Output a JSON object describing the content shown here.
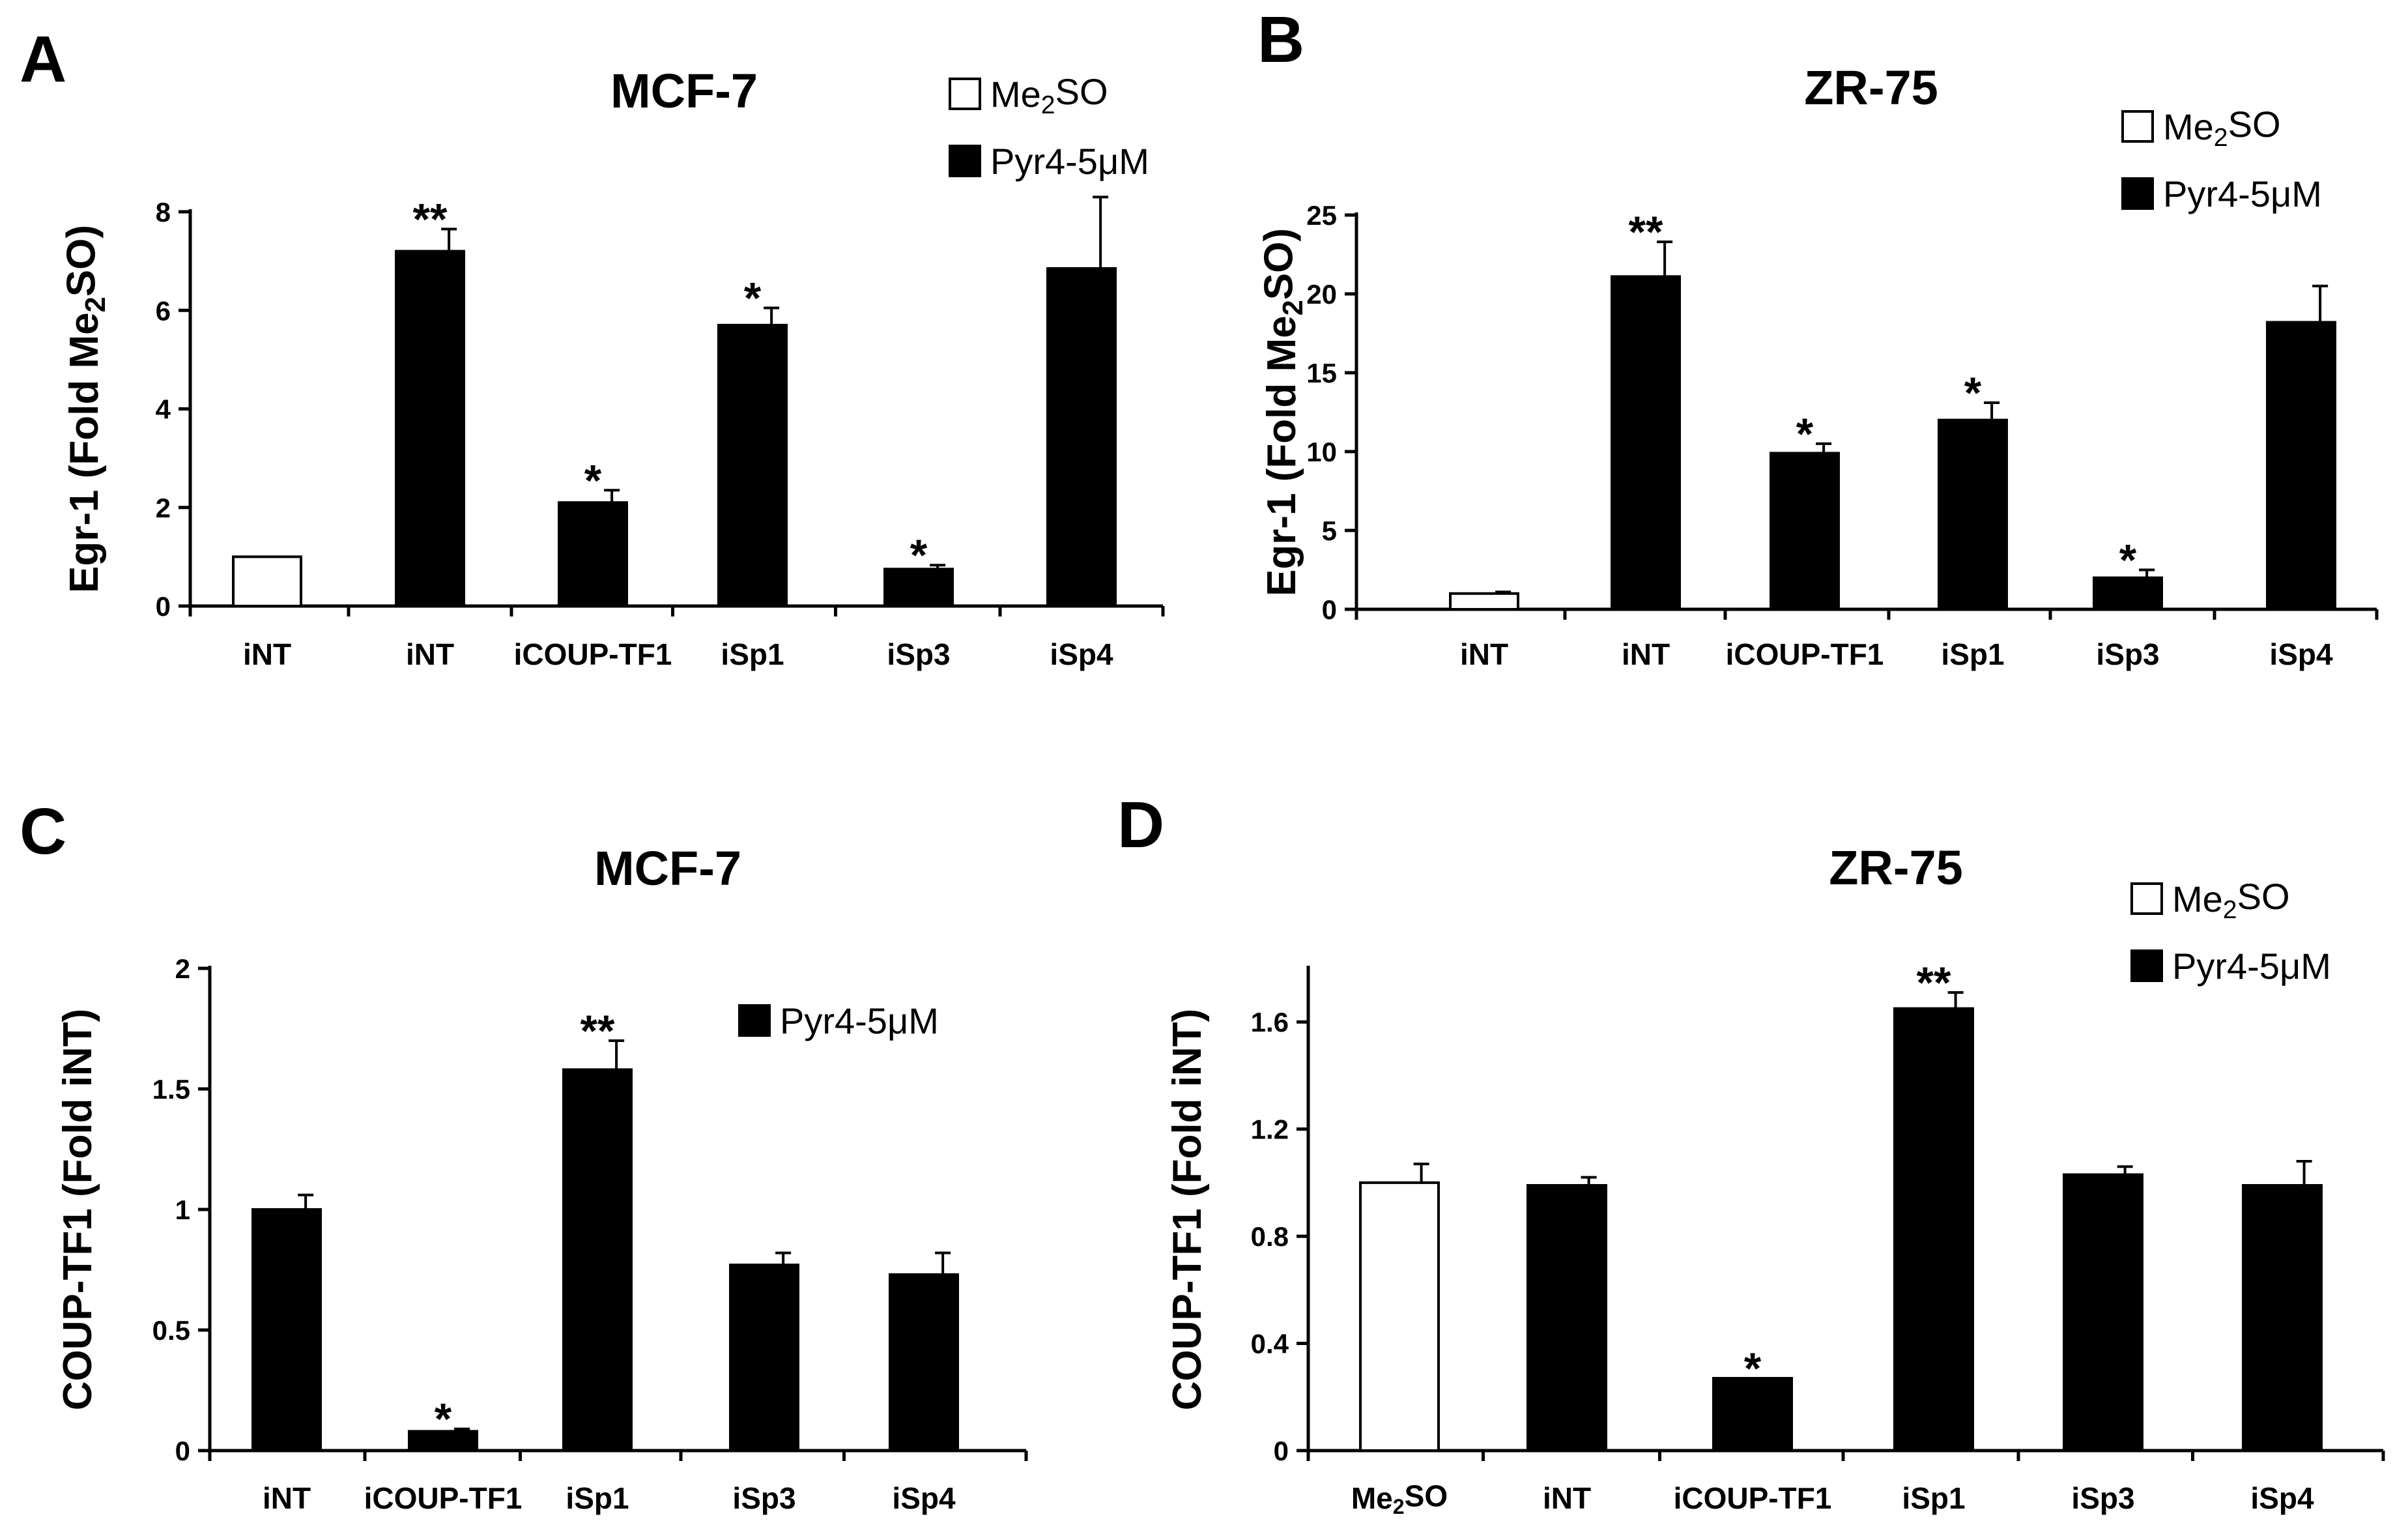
{
  "chart_data": [
    {
      "panel": "A",
      "type": "bar",
      "title": "MCF-7",
      "ylabel": "Egr-1 (Fold Me2SO)",
      "xlabel": "",
      "ylim": [
        0,
        8
      ],
      "yticks": [
        0,
        2,
        4,
        6,
        8
      ],
      "categories": [
        "iNT",
        "iNT",
        "iCOUP-TF1",
        "iSp1",
        "iSp3",
        "iSp4"
      ],
      "series": [
        {
          "name": "Me2SO",
          "values": [
            1.0,
            null,
            null,
            null,
            null,
            null
          ],
          "errors": [
            0,
            null,
            null,
            null,
            null,
            null
          ]
        },
        {
          "name": "Pyr4-5μM",
          "values": [
            null,
            7.2,
            2.1,
            5.7,
            0.75,
            6.85
          ],
          "errors": [
            null,
            0.45,
            0.25,
            0.35,
            0.08,
            1.45
          ]
        }
      ],
      "annotations": [
        "",
        "**",
        "*",
        "*",
        "*",
        ""
      ],
      "legend": [
        {
          "label": "Me2SO",
          "fill": "#ffffff"
        },
        {
          "label": "Pyr4-5μM",
          "fill": "#000000"
        }
      ]
    },
    {
      "panel": "B",
      "type": "bar",
      "title": "ZR-75",
      "ylabel": "Egr-1 (Fold Me2SO)",
      "xlabel": "",
      "ylim": [
        0,
        25
      ],
      "yticks": [
        0,
        5,
        10,
        15,
        20,
        25
      ],
      "categories": [
        "iNT",
        "iNT",
        "iCOUP-TF1",
        "iSp1",
        "iSp3",
        "iSp4"
      ],
      "series": [
        {
          "name": "Me2SO",
          "values": [
            1.0,
            null,
            null,
            null,
            null,
            null
          ],
          "errors": [
            0.1,
            null,
            null,
            null,
            null,
            null
          ]
        },
        {
          "name": "Pyr4-5μM",
          "values": [
            null,
            21.1,
            9.9,
            12.0,
            2.0,
            18.2
          ],
          "errors": [
            null,
            2.2,
            0.6,
            1.1,
            0.5,
            2.3
          ]
        }
      ],
      "annotations": [
        "",
        "**",
        "*",
        "*",
        "*",
        ""
      ],
      "legend": [
        {
          "label": "Me2SO",
          "fill": "#ffffff"
        },
        {
          "label": "Pyr4-5μM",
          "fill": "#000000"
        }
      ]
    },
    {
      "panel": "C",
      "type": "bar",
      "title": "MCF-7",
      "ylabel": "COUP-TF1 (Fold iNT)",
      "xlabel": "",
      "ylim": [
        0,
        2
      ],
      "yticks": [
        0,
        0.5,
        1,
        1.5,
        2
      ],
      "categories": [
        "iNT",
        "iCOUP-TF1",
        "iSp1",
        "iSp3",
        "iSp4"
      ],
      "series": [
        {
          "name": "Pyr4-5μM",
          "values": [
            1.0,
            0.08,
            1.58,
            0.77,
            0.73
          ],
          "errors": [
            0.06,
            0.01,
            0.12,
            0.05,
            0.09
          ]
        }
      ],
      "annotations": [
        "",
        "*",
        "**",
        "",
        ""
      ],
      "legend": [
        {
          "label": "Pyr4-5μM",
          "fill": "#000000"
        }
      ]
    },
    {
      "panel": "D",
      "type": "bar",
      "title": "ZR-75",
      "ylabel": "COUP-TF1 (Fold iNT)",
      "xlabel": "",
      "ylim": [
        0,
        1.8
      ],
      "yticks": [
        0,
        0.4,
        0.8,
        1.2,
        1.6
      ],
      "categories": [
        "Me2SO",
        "iNT",
        "iCOUP-TF1",
        "iSp1",
        "iSp3",
        "iSp4"
      ],
      "series": [
        {
          "name": "Me2SO",
          "values": [
            1.0,
            null,
            null,
            null,
            null,
            null
          ],
          "errors": [
            0.07,
            null,
            null,
            null,
            null,
            null
          ]
        },
        {
          "name": "Pyr4-5μM",
          "values": [
            null,
            0.99,
            0.27,
            1.65,
            1.03,
            0.99
          ],
          "errors": [
            null,
            0.03,
            0,
            0.06,
            0.03,
            0.09
          ]
        }
      ],
      "annotations": [
        "",
        "",
        "*",
        "**",
        "",
        ""
      ],
      "legend": [
        {
          "label": "Me2SO",
          "fill": "#ffffff"
        },
        {
          "label": "Pyr4-5μM",
          "fill": "#000000"
        }
      ]
    }
  ]
}
